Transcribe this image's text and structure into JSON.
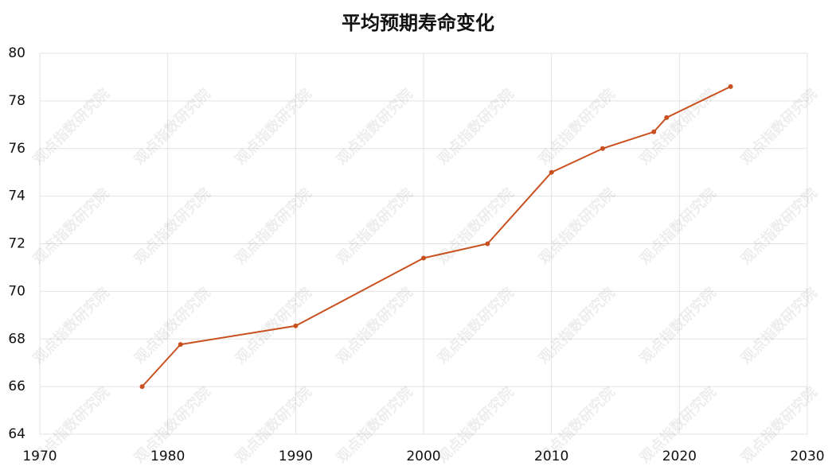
{
  "chart_data": {
    "type": "line",
    "title": "平均预期寿命变化",
    "x": [
      1978,
      1981,
      1990,
      2000,
      2005,
      2010,
      2014,
      2018,
      2019,
      2024
    ],
    "series": [
      {
        "name": "平均预期寿命",
        "color": "#c8511f",
        "values": [
          66,
          67.77,
          68.55,
          71.4,
          72.0,
          75.0,
          76.0,
          76.7,
          77.3,
          78.6
        ]
      }
    ],
    "xlim": [
      1970,
      2030
    ],
    "xticks": [
      1970,
      1980,
      1990,
      2000,
      2010,
      2020,
      2030
    ],
    "ylim": [
      64,
      80
    ],
    "yticks": [
      64,
      66,
      68,
      70,
      72,
      74,
      76,
      78,
      80
    ],
    "grid": true,
    "watermark": "观点指数研究院"
  }
}
